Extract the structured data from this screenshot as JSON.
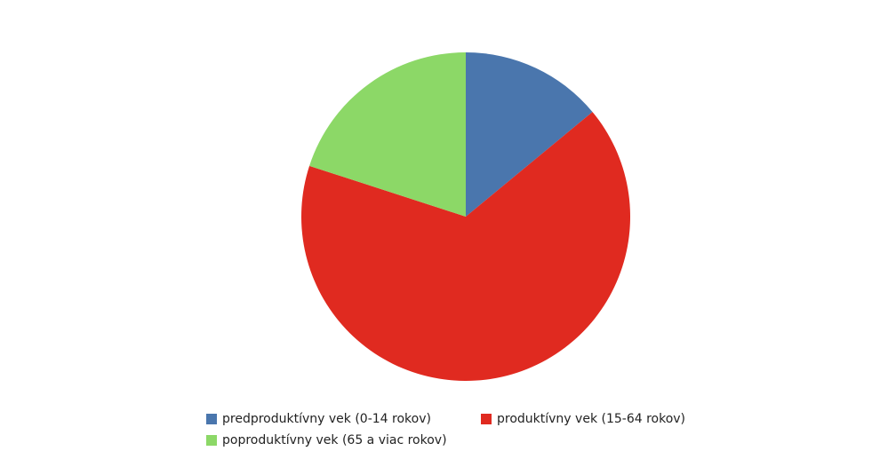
{
  "chart_data": {
    "type": "pie",
    "categories": [
      "predproduktívny vek (0-14 rokov)",
      "produktívny vek (15-64 rokov)",
      "poproduktívny vek (65 a viac rokov)"
    ],
    "values": [
      14,
      66,
      20
    ],
    "colors": [
      "#4a76ad",
      "#e02a20",
      "#8cd867"
    ]
  }
}
